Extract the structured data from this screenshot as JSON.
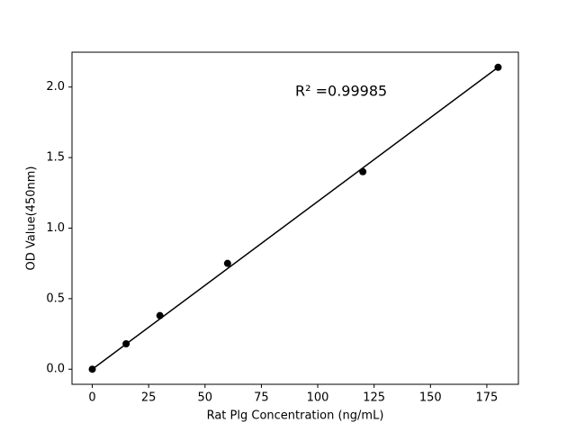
{
  "chart_data": {
    "type": "scatter",
    "xlabel": "Rat Plg Concentration (ng/mL)",
    "ylabel": "OD Value(450nm)",
    "annotation": "R² =0.99985",
    "points": {
      "x": [
        0,
        15,
        30,
        60,
        120,
        180
      ],
      "values": [
        0.0,
        0.18,
        0.38,
        0.75,
        1.4,
        2.14
      ],
      "color": "#000000"
    },
    "fit_line": {
      "x": [
        0,
        180
      ],
      "values": [
        0.0,
        2.14
      ],
      "color": "#000000"
    },
    "xlim": [
      -9,
      189
    ],
    "ylim": [
      -0.107,
      2.247
    ],
    "xticks": [
      0,
      25,
      50,
      75,
      100,
      125,
      150,
      175
    ],
    "yticks": [
      {
        "value": 0,
        "label": "0.0"
      },
      {
        "value": 0.5,
        "label": "0.5"
      },
      {
        "value": 1,
        "label": "1.0"
      },
      {
        "value": 1.5,
        "label": "1.5"
      },
      {
        "value": 2,
        "label": "2.0"
      }
    ],
    "grid": false
  }
}
